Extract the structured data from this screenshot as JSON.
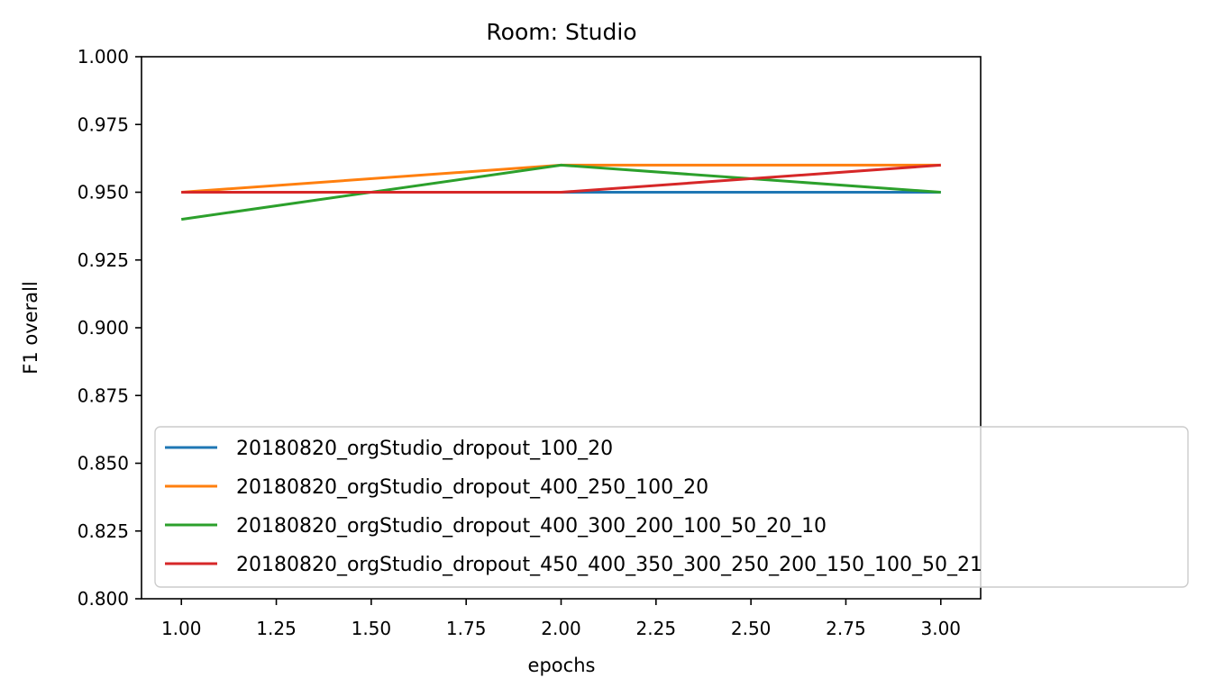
{
  "chart_data": {
    "type": "line",
    "title": "Room: Studio",
    "xlabel": "epochs",
    "ylabel": "F1 overall",
    "xlim": [
      0.895,
      3.105
    ],
    "ylim": [
      0.8,
      1.0
    ],
    "xticks": [
      1.0,
      1.25,
      1.5,
      1.75,
      2.0,
      2.25,
      2.5,
      2.75,
      3.0
    ],
    "xtick_labels": [
      "1.00",
      "1.25",
      "1.50",
      "1.75",
      "2.00",
      "2.25",
      "2.50",
      "2.75",
      "3.00"
    ],
    "yticks": [
      0.8,
      0.825,
      0.85,
      0.875,
      0.9,
      0.925,
      0.95,
      0.975,
      1.0
    ],
    "ytick_labels": [
      "0.800",
      "0.825",
      "0.850",
      "0.875",
      "0.900",
      "0.925",
      "0.950",
      "0.975",
      "1.000"
    ],
    "grid": false,
    "legend_position": "lower-right",
    "x": [
      1,
      2,
      3
    ],
    "series": [
      {
        "name": "20180820_orgStudio_dropout_100_20",
        "color": "#1f77b4",
        "values": [
          0.95,
          0.95,
          0.95
        ]
      },
      {
        "name": "20180820_orgStudio_dropout_400_250_100_20",
        "color": "#ff7f0e",
        "values": [
          0.95,
          0.96,
          0.96
        ]
      },
      {
        "name": "20180820_orgStudio_dropout_400_300_200_100_50_20_10",
        "color": "#2ca02c",
        "values": [
          0.94,
          0.96,
          0.95
        ]
      },
      {
        "name": "20180820_orgStudio_dropout_450_400_350_300_250_200_150_100_50_21",
        "color": "#d62728",
        "values": [
          0.95,
          0.95,
          0.96
        ]
      }
    ]
  }
}
